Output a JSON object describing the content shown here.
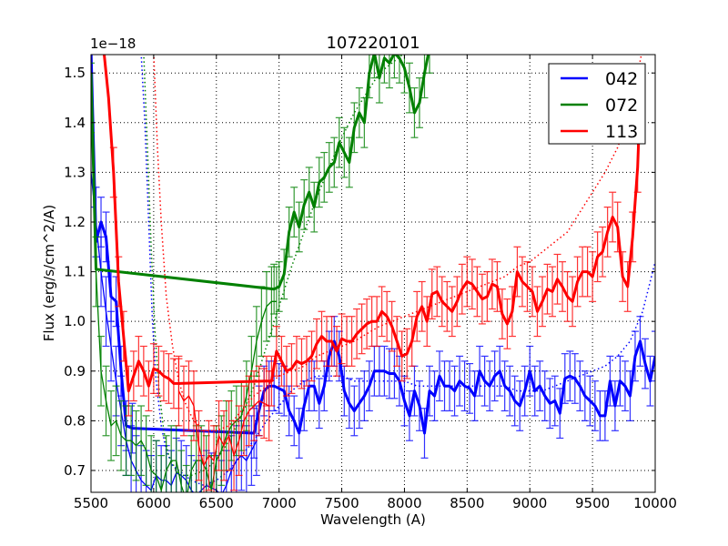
{
  "chart_data": {
    "type": "line",
    "title": "107220101",
    "xlabel": "Wavelength (A)",
    "ylabel": "Flux (erg/s/cm^2/A)",
    "y_offset_label": "1e−18",
    "xlim": [
      5500,
      10000
    ],
    "ylim": [
      0.656,
      1.537
    ],
    "xticks": [
      5500,
      6000,
      6500,
      7000,
      7500,
      8000,
      8500,
      9000,
      9500,
      10000
    ],
    "xtick_labels": [
      "5500",
      "6000",
      "6500",
      "7000",
      "7500",
      "8000",
      "8500",
      "9000",
      "9500",
      "10000"
    ],
    "yticks": [
      0.7,
      0.8,
      0.9,
      1.0,
      1.1,
      1.2,
      1.3,
      1.4,
      1.5
    ],
    "ytick_labels": [
      "0.7",
      "0.8",
      "0.9",
      "1.0",
      "1.1",
      "1.2",
      "1.3",
      "1.4",
      "1.5"
    ],
    "grid": true,
    "legend_position": "upper right",
    "legend": [
      {
        "label": "042",
        "color": "#0000ff"
      },
      {
        "label": "072",
        "color": "#008000"
      },
      {
        "label": "113",
        "color": "#ff0000"
      }
    ],
    "series": [
      {
        "name": "042",
        "color": "#0000ff",
        "thick": {
          "x": [
            5500,
            5540,
            5580,
            5620,
            5660,
            5700,
            5740,
            5780,
            5830,
            6800,
            6840,
            6880,
            6920,
            6960,
            7000,
            7040,
            7080,
            7120,
            7160,
            7200,
            7240,
            7280,
            7320,
            7360,
            7400,
            7440,
            7480,
            7520,
            7560,
            7600,
            7640,
            7680,
            7720,
            7760,
            7800,
            7840,
            7880,
            7920,
            7960,
            8000,
            8040,
            8080,
            8120,
            8160,
            8200,
            8240,
            8280,
            8320,
            8360,
            8400,
            8440,
            8480,
            8520,
            8560,
            8600,
            8640,
            8680,
            8720,
            8760,
            8800,
            8840,
            8880,
            8920,
            8960,
            9000,
            9040,
            9080,
            9120,
            9160,
            9200,
            9240,
            9280,
            9320,
            9360,
            9400,
            9440,
            9480,
            9520,
            9560,
            9600,
            9640,
            9680,
            9720,
            9760,
            9800,
            9840,
            9880,
            9920,
            9960,
            10000
          ],
          "y": [
            1.55,
            1.16,
            1.2,
            1.17,
            1.05,
            1.04,
            0.9,
            0.79,
            0.785,
            0.775,
            0.82,
            0.86,
            0.87,
            0.87,
            0.865,
            0.86,
            0.82,
            0.8,
            0.775,
            0.83,
            0.87,
            0.87,
            0.835,
            0.87,
            0.93,
            0.96,
            0.93,
            0.86,
            0.835,
            0.82,
            0.835,
            0.85,
            0.87,
            0.9,
            0.9,
            0.9,
            0.895,
            0.895,
            0.88,
            0.84,
            0.81,
            0.86,
            0.83,
            0.775,
            0.86,
            0.85,
            0.89,
            0.87,
            0.87,
            0.86,
            0.88,
            0.87,
            0.865,
            0.85,
            0.9,
            0.88,
            0.87,
            0.89,
            0.9,
            0.87,
            0.86,
            0.84,
            0.83,
            0.86,
            0.9,
            0.86,
            0.87,
            0.85,
            0.835,
            0.84,
            0.815,
            0.885,
            0.89,
            0.885,
            0.87,
            0.85,
            0.84,
            0.83,
            0.81,
            0.81,
            0.88,
            0.83,
            0.88,
            0.87,
            0.85,
            0.93,
            0.96,
            0.915,
            0.88,
            0.93
          ],
          "yerr": 0.05
        },
        "thin": {
          "x": [
            5500,
            5540,
            5580,
            5620,
            5660,
            5700,
            5740,
            5780,
            5820,
            5860,
            5900,
            5940,
            5980,
            6020,
            6060,
            6100,
            6140,
            6180,
            6220,
            6260,
            6300,
            6340,
            6380,
            6420,
            6460,
            6500,
            6540,
            6580,
            6620,
            6660,
            6700,
            6740,
            6780,
            6820
          ],
          "y": [
            1.3,
            1.2,
            1.1,
            1.02,
            0.95,
            0.88,
            0.82,
            0.76,
            0.72,
            0.7,
            0.68,
            0.67,
            0.66,
            0.69,
            0.68,
            0.68,
            0.67,
            0.695,
            0.69,
            0.68,
            0.66,
            0.65,
            0.66,
            0.67,
            0.665,
            0.66,
            0.65,
            0.67,
            0.7,
            0.72,
            0.73,
            0.72,
            0.74,
            0.76
          ]
        },
        "model": {
          "x": [
            5900,
            5930,
            5960,
            5990,
            6020,
            6060,
            6100,
            6150,
            6200,
            6300,
            6400,
            6500,
            6600,
            6700,
            6800,
            6900,
            7000,
            7100,
            7200,
            7300,
            7400,
            7500,
            7600,
            7700,
            7800,
            7900,
            8000,
            8100,
            8200,
            8300,
            8400,
            8500,
            8600,
            8700,
            8800,
            8900,
            9000,
            9100,
            9200,
            9300,
            9400,
            9500,
            9600,
            9700,
            9800,
            9900,
            10000
          ],
          "y": [
            1.54,
            1.4,
            1.2,
            1.0,
            0.88,
            0.79,
            0.74,
            0.71,
            0.7,
            0.68,
            0.67,
            0.68,
            0.7,
            0.73,
            0.76,
            0.8,
            0.83,
            0.86,
            0.88,
            0.89,
            0.89,
            0.89,
            0.88,
            0.88,
            0.88,
            0.88,
            0.88,
            0.87,
            0.87,
            0.87,
            0.87,
            0.87,
            0.87,
            0.87,
            0.87,
            0.86,
            0.86,
            0.86,
            0.87,
            0.88,
            0.89,
            0.9,
            0.91,
            0.93,
            0.96,
            1.02,
            1.12
          ]
        }
      },
      {
        "name": "072",
        "color": "#008000",
        "thick": {
          "x": [
            5500,
            5540,
            6960,
            7000,
            7040,
            7080,
            7120,
            7160,
            7200,
            7240,
            7280,
            7320,
            7360,
            7400,
            7440,
            7480,
            7520,
            7560,
            7600,
            7640,
            7680,
            7720,
            7760,
            7800,
            7840,
            7880,
            7920,
            7960,
            8000,
            8040,
            8080,
            8120,
            8160,
            8200
          ],
          "y": [
            1.5,
            1.105,
            1.065,
            1.07,
            1.095,
            1.18,
            1.22,
            1.19,
            1.235,
            1.26,
            1.23,
            1.28,
            1.29,
            1.31,
            1.32,
            1.36,
            1.34,
            1.32,
            1.39,
            1.42,
            1.4,
            1.5,
            1.54,
            1.49,
            1.53,
            1.52,
            1.54,
            1.53,
            1.51,
            1.47,
            1.42,
            1.44,
            1.5,
            1.55
          ]
        },
        "thin": {
          "x": [
            5500,
            5540,
            5580,
            5620,
            5660,
            5700,
            5740,
            5780,
            5820,
            5860,
            5900,
            5940,
            5980,
            6020,
            6060,
            6100,
            6140,
            6180,
            6220,
            6260,
            6300,
            6340,
            6380,
            6420,
            6460,
            6500,
            6540,
            6580,
            6620,
            6660,
            6700,
            6740,
            6780,
            6820,
            6860,
            6900,
            6940,
            6980
          ],
          "y": [
            1.45,
            1.1,
            0.9,
            0.84,
            0.79,
            0.8,
            0.77,
            0.76,
            0.76,
            0.75,
            0.76,
            0.74,
            0.7,
            0.69,
            0.66,
            0.7,
            0.72,
            0.72,
            0.67,
            0.64,
            0.7,
            0.72,
            0.72,
            0.7,
            0.66,
            0.72,
            0.74,
            0.77,
            0.79,
            0.8,
            0.81,
            0.85,
            0.9,
            0.96,
            1.0,
            1.03,
            1.04,
            1.04
          ]
        },
        "model": {
          "x": [
            5920,
            5950,
            5980,
            6010,
            6040,
            6080,
            6120,
            6200,
            6300,
            6400,
            6500,
            6600,
            6700,
            6800,
            6900,
            7000,
            7100,
            7200,
            7300,
            7400,
            7500,
            7600,
            7700,
            7800,
            7900,
            8000,
            8100
          ],
          "y": [
            1.54,
            1.35,
            1.15,
            0.98,
            0.87,
            0.78,
            0.73,
            0.69,
            0.69,
            0.7,
            0.72,
            0.76,
            0.81,
            0.87,
            0.95,
            1.03,
            1.11,
            1.18,
            1.25,
            1.31,
            1.37,
            1.42,
            1.46,
            1.5,
            1.52,
            1.54,
            1.55
          ]
        }
      },
      {
        "name": "113",
        "color": "#ff0000",
        "thick": {
          "x": [
            5600,
            5640,
            5680,
            5720,
            5760,
            5800,
            5840,
            5880,
            5920,
            5960,
            6000,
            6040,
            6080,
            6120,
            6160,
            6200,
            6900,
            6940,
            6980,
            7020,
            7060,
            7100,
            7140,
            7180,
            7220,
            7260,
            7300,
            7340,
            7380,
            7420,
            7460,
            7500,
            7540,
            7580,
            7620,
            7660,
            7700,
            7740,
            7780,
            7820,
            7860,
            7900,
            7940,
            7980,
            8020,
            8060,
            8100,
            8140,
            8180,
            8220,
            8260,
            8300,
            8340,
            8380,
            8420,
            8460,
            8500,
            8540,
            8580,
            8620,
            8660,
            8700,
            8740,
            8780,
            8820,
            8860,
            8900,
            8940,
            8980,
            9020,
            9060,
            9100,
            9140,
            9180,
            9220,
            9260,
            9300,
            9340,
            9380,
            9420,
            9460,
            9500,
            9540,
            9580,
            9620,
            9660,
            9700,
            9740,
            9780,
            9820,
            9860,
            9880
          ],
          "y": [
            1.55,
            1.45,
            1.3,
            1.08,
            0.97,
            0.86,
            0.89,
            0.92,
            0.9,
            0.87,
            0.905,
            0.9,
            0.89,
            0.885,
            0.875,
            0.875,
            0.88,
            0.88,
            0.94,
            0.92,
            0.9,
            0.905,
            0.92,
            0.915,
            0.92,
            0.93,
            0.955,
            0.97,
            0.96,
            0.96,
            0.94,
            0.965,
            0.96,
            0.96,
            0.975,
            0.985,
            0.995,
            1.0,
            1.0,
            1.02,
            1.01,
            0.99,
            0.96,
            0.93,
            0.935,
            0.96,
            1.01,
            1.03,
            1.0,
            1.055,
            1.06,
            1.04,
            1.03,
            1.02,
            1.04,
            1.065,
            1.08,
            1.075,
            1.06,
            1.045,
            1.05,
            1.075,
            1.07,
            1.015,
            0.995,
            1.02,
            1.1,
            1.08,
            1.07,
            1.06,
            1.02,
            1.04,
            1.065,
            1.06,
            1.085,
            1.07,
            1.05,
            1.04,
            1.08,
            1.1,
            1.1,
            1.09,
            1.13,
            1.14,
            1.18,
            1.21,
            1.19,
            1.09,
            1.07,
            1.17,
            1.31,
            1.45
          ]
        },
        "thin": {
          "x": [
            6200,
            6240,
            6280,
            6320,
            6360,
            6400,
            6440,
            6480,
            6520,
            6560,
            6600,
            6640,
            6680,
            6720,
            6760,
            6800,
            6840,
            6880,
            6920
          ],
          "y": [
            0.86,
            0.84,
            0.85,
            0.83,
            0.75,
            0.71,
            0.73,
            0.72,
            0.77,
            0.75,
            0.77,
            0.73,
            0.76,
            0.8,
            0.82,
            0.83,
            0.84,
            0.835,
            0.83
          ]
        },
        "model": {
          "x": [
            6000,
            6030,
            6060,
            6100,
            6150,
            6200,
            6260,
            6320,
            6400,
            6500,
            6600,
            6700,
            6800,
            6900,
            7000,
            7100,
            7200,
            7300,
            7400,
            7500,
            7600,
            7700,
            7800,
            7900,
            8000,
            8100,
            8200,
            8300,
            8400,
            8500,
            8600,
            8700,
            8800,
            8900,
            9000,
            9100,
            9200,
            9300,
            9400,
            9500,
            9600,
            9700,
            9800,
            9900
          ],
          "y": [
            1.54,
            1.35,
            1.2,
            1.05,
            0.95,
            0.88,
            0.83,
            0.8,
            0.78,
            0.78,
            0.79,
            0.82,
            0.85,
            0.87,
            0.89,
            0.9,
            0.91,
            0.93,
            0.94,
            0.95,
            0.96,
            0.975,
            0.99,
            1.0,
            1.01,
            1.02,
            1.03,
            1.04,
            1.05,
            1.06,
            1.07,
            1.08,
            1.09,
            1.11,
            1.12,
            1.14,
            1.16,
            1.18,
            1.22,
            1.26,
            1.3,
            1.35,
            1.42,
            1.55
          ]
        }
      }
    ]
  }
}
